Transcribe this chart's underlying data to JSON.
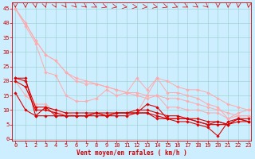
{
  "xlabel": "Vent moyen/en rafales ( km/h )",
  "bg_color": "#cceeff",
  "grid_color": "#99cccc",
  "x_ticks": [
    0,
    1,
    2,
    3,
    4,
    5,
    6,
    7,
    8,
    9,
    10,
    11,
    12,
    13,
    14,
    15,
    16,
    17,
    18,
    19,
    20,
    21,
    22,
    23
  ],
  "y_ticks": [
    0,
    5,
    10,
    15,
    20,
    25,
    30,
    35,
    40,
    45
  ],
  "ylim": [
    -0.5,
    47
  ],
  "xlim": [
    -0.3,
    23.3
  ],
  "light_color": "#ffaaaa",
  "dark_color": "#dd0000",
  "marker_size": 1.8,
  "linewidth_light": 0.7,
  "linewidth_dark": 0.8,
  "font_color": "#cc0000",
  "series_light": [
    [
      45,
      40,
      34,
      29,
      27,
      23,
      21,
      20,
      19,
      18,
      17,
      16,
      16,
      15,
      21,
      20,
      18,
      17,
      17,
      16,
      14,
      12,
      11,
      10
    ],
    [
      45,
      40,
      34,
      29,
      27,
      23,
      20,
      19,
      19,
      18,
      17,
      16,
      15,
      14,
      15,
      14,
      14,
      13,
      12,
      11,
      10,
      9,
      8,
      8
    ],
    [
      45,
      39,
      33,
      23,
      22,
      15,
      13,
      13,
      14,
      17,
      15,
      16,
      21,
      17,
      21,
      16,
      16,
      15,
      14,
      12,
      11,
      7,
      9,
      10
    ],
    [
      20,
      15,
      12,
      12,
      9,
      9,
      8,
      8,
      8,
      8,
      8,
      8,
      9,
      15,
      15,
      11,
      11,
      10,
      10,
      9,
      9,
      7,
      8,
      8
    ]
  ],
  "series_dark": [
    [
      21,
      21,
      8,
      11,
      8,
      8,
      8,
      8,
      9,
      8,
      9,
      9,
      9,
      12,
      11,
      7,
      6,
      6,
      5,
      4,
      1,
      6,
      7,
      7
    ],
    [
      16,
      10,
      8,
      8,
      8,
      8,
      8,
      8,
      9,
      8,
      9,
      9,
      9,
      9,
      8,
      7,
      7,
      7,
      6,
      5,
      6,
      5,
      7,
      6
    ],
    [
      21,
      20,
      11,
      11,
      10,
      9,
      9,
      9,
      9,
      9,
      9,
      9,
      10,
      10,
      9,
      8,
      8,
      7,
      7,
      6,
      6,
      5,
      7,
      6
    ],
    [
      20,
      18,
      10,
      10,
      9,
      8,
      8,
      8,
      8,
      8,
      8,
      8,
      9,
      9,
      7,
      7,
      7,
      7,
      6,
      5,
      5,
      5,
      6,
      6
    ]
  ],
  "wind_arrows_x": [
    0,
    1,
    2,
    3,
    4,
    5,
    6,
    7,
    8,
    9,
    10,
    11,
    12,
    13,
    14,
    15,
    16,
    17,
    18,
    19,
    20,
    21,
    22,
    23
  ],
  "wind_arrows_angle": [
    180,
    180,
    170,
    160,
    150,
    140,
    130,
    120,
    110,
    100,
    95,
    90,
    90,
    90,
    85,
    80,
    75,
    70,
    60,
    55,
    180,
    185,
    185,
    190
  ]
}
